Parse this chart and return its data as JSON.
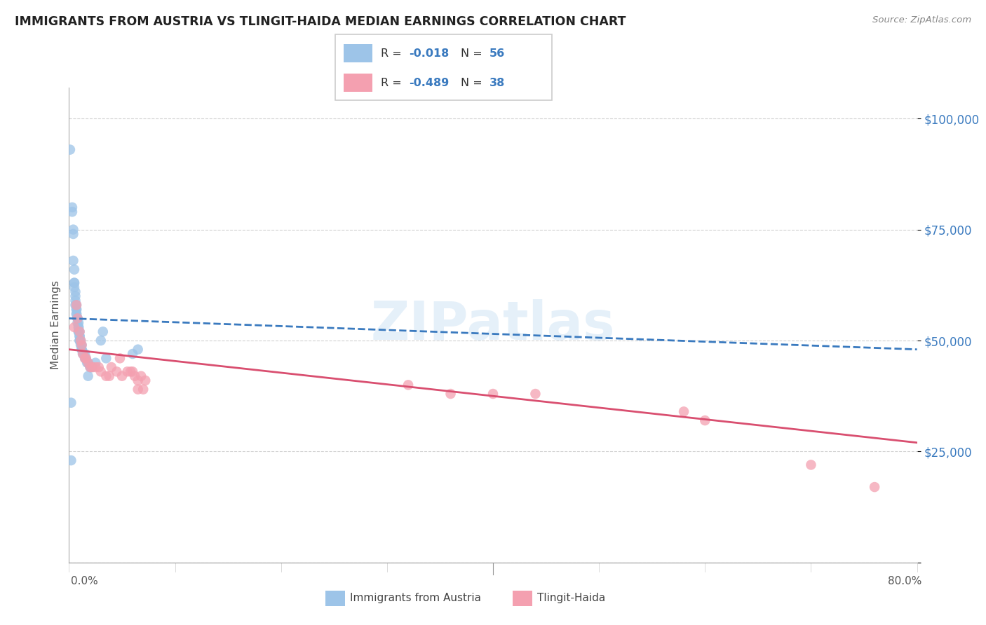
{
  "title": "IMMIGRANTS FROM AUSTRIA VS TLINGIT-HAIDA MEDIAN EARNINGS CORRELATION CHART",
  "source": "Source: ZipAtlas.com",
  "ylabel": "Median Earnings",
  "yticks": [
    0,
    25000,
    50000,
    75000,
    100000
  ],
  "ytick_labels": [
    "",
    "$25,000",
    "$50,000",
    "$75,000",
    "$100,000"
  ],
  "xmin": 0.0,
  "xmax": 0.8,
  "ymin": 0,
  "ymax": 107000,
  "watermark": "ZIPatlas",
  "series1_label": "Immigrants from Austria",
  "series2_label": "Tlingit-Haida",
  "series1_color": "#9dc4e8",
  "series2_color": "#f4a0b0",
  "trendline1_color": "#3a7abf",
  "trendline2_color": "#d94f70",
  "series1_R": -0.018,
  "series1_N": 56,
  "series2_R": -0.489,
  "series2_N": 38,
  "trendline1_x0": 0.0,
  "trendline1_y0": 55000,
  "trendline1_x1": 0.8,
  "trendline1_y1": 48000,
  "trendline2_x0": 0.0,
  "trendline2_y0": 48000,
  "trendline2_x1": 0.8,
  "trendline2_y1": 27000,
  "blue_x": [
    0.001,
    0.003,
    0.003,
    0.004,
    0.004,
    0.004,
    0.005,
    0.005,
    0.005,
    0.005,
    0.006,
    0.006,
    0.006,
    0.006,
    0.007,
    0.007,
    0.007,
    0.007,
    0.007,
    0.008,
    0.008,
    0.008,
    0.009,
    0.009,
    0.009,
    0.009,
    0.009,
    0.01,
    0.01,
    0.01,
    0.01,
    0.01,
    0.011,
    0.011,
    0.012,
    0.012,
    0.012,
    0.013,
    0.014,
    0.015,
    0.015,
    0.016,
    0.017,
    0.018,
    0.02,
    0.02,
    0.022,
    0.025,
    0.03,
    0.032,
    0.06,
    0.065,
    0.002,
    0.002,
    0.035,
    0.018
  ],
  "blue_y": [
    93000,
    80000,
    79000,
    75000,
    74000,
    68000,
    66000,
    63000,
    63000,
    62000,
    61000,
    60000,
    59000,
    58000,
    58000,
    57000,
    57000,
    56000,
    56000,
    55000,
    55000,
    54000,
    54000,
    53000,
    53000,
    52000,
    52000,
    52000,
    51000,
    51000,
    50000,
    50000,
    50000,
    49000,
    49000,
    48000,
    48000,
    47000,
    47000,
    47000,
    46000,
    46000,
    45000,
    45000,
    44000,
    44000,
    44000,
    45000,
    50000,
    52000,
    47000,
    48000,
    36000,
    23000,
    46000,
    42000
  ],
  "pink_x": [
    0.005,
    0.007,
    0.008,
    0.01,
    0.011,
    0.012,
    0.013,
    0.015,
    0.016,
    0.018,
    0.02,
    0.022,
    0.025,
    0.028,
    0.03,
    0.035,
    0.038,
    0.04,
    0.045,
    0.048,
    0.05,
    0.055,
    0.058,
    0.06,
    0.062,
    0.065,
    0.065,
    0.068,
    0.07,
    0.072,
    0.32,
    0.36,
    0.4,
    0.44,
    0.58,
    0.6,
    0.7,
    0.76
  ],
  "pink_y": [
    53000,
    58000,
    55000,
    52000,
    50000,
    49000,
    47000,
    46000,
    46000,
    45000,
    44000,
    44000,
    44000,
    44000,
    43000,
    42000,
    42000,
    44000,
    43000,
    46000,
    42000,
    43000,
    43000,
    43000,
    42000,
    41000,
    39000,
    42000,
    39000,
    41000,
    40000,
    38000,
    38000,
    38000,
    34000,
    32000,
    22000,
    17000
  ]
}
